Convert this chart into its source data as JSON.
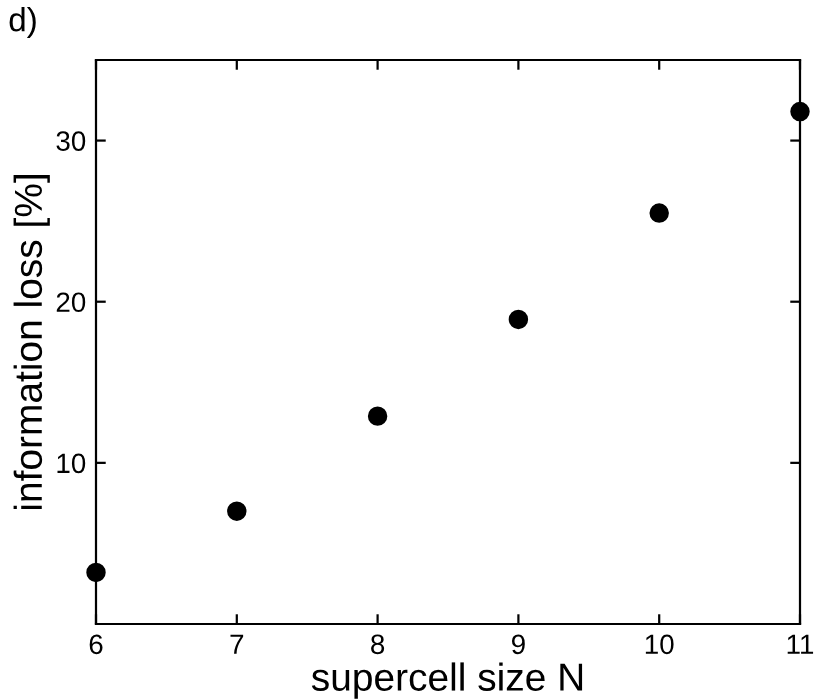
{
  "chart_data": {
    "type": "scatter",
    "title": "d)",
    "xlabel": "supercell size N",
    "ylabel": "information loss [%]",
    "x": [
      6,
      7,
      8,
      9,
      10,
      11
    ],
    "series": [
      {
        "color": "#000000",
        "values": [
          3.2,
          7.0,
          12.9,
          18.9,
          25.5,
          31.8
        ]
      }
    ],
    "xlim": [
      6,
      11
    ],
    "xticks": [
      6,
      7,
      8,
      9,
      10,
      11
    ],
    "ylim": [
      0,
      35
    ],
    "yticks": [
      10,
      20,
      30
    ],
    "marker": "circle",
    "grid": false,
    "legend": false
  }
}
